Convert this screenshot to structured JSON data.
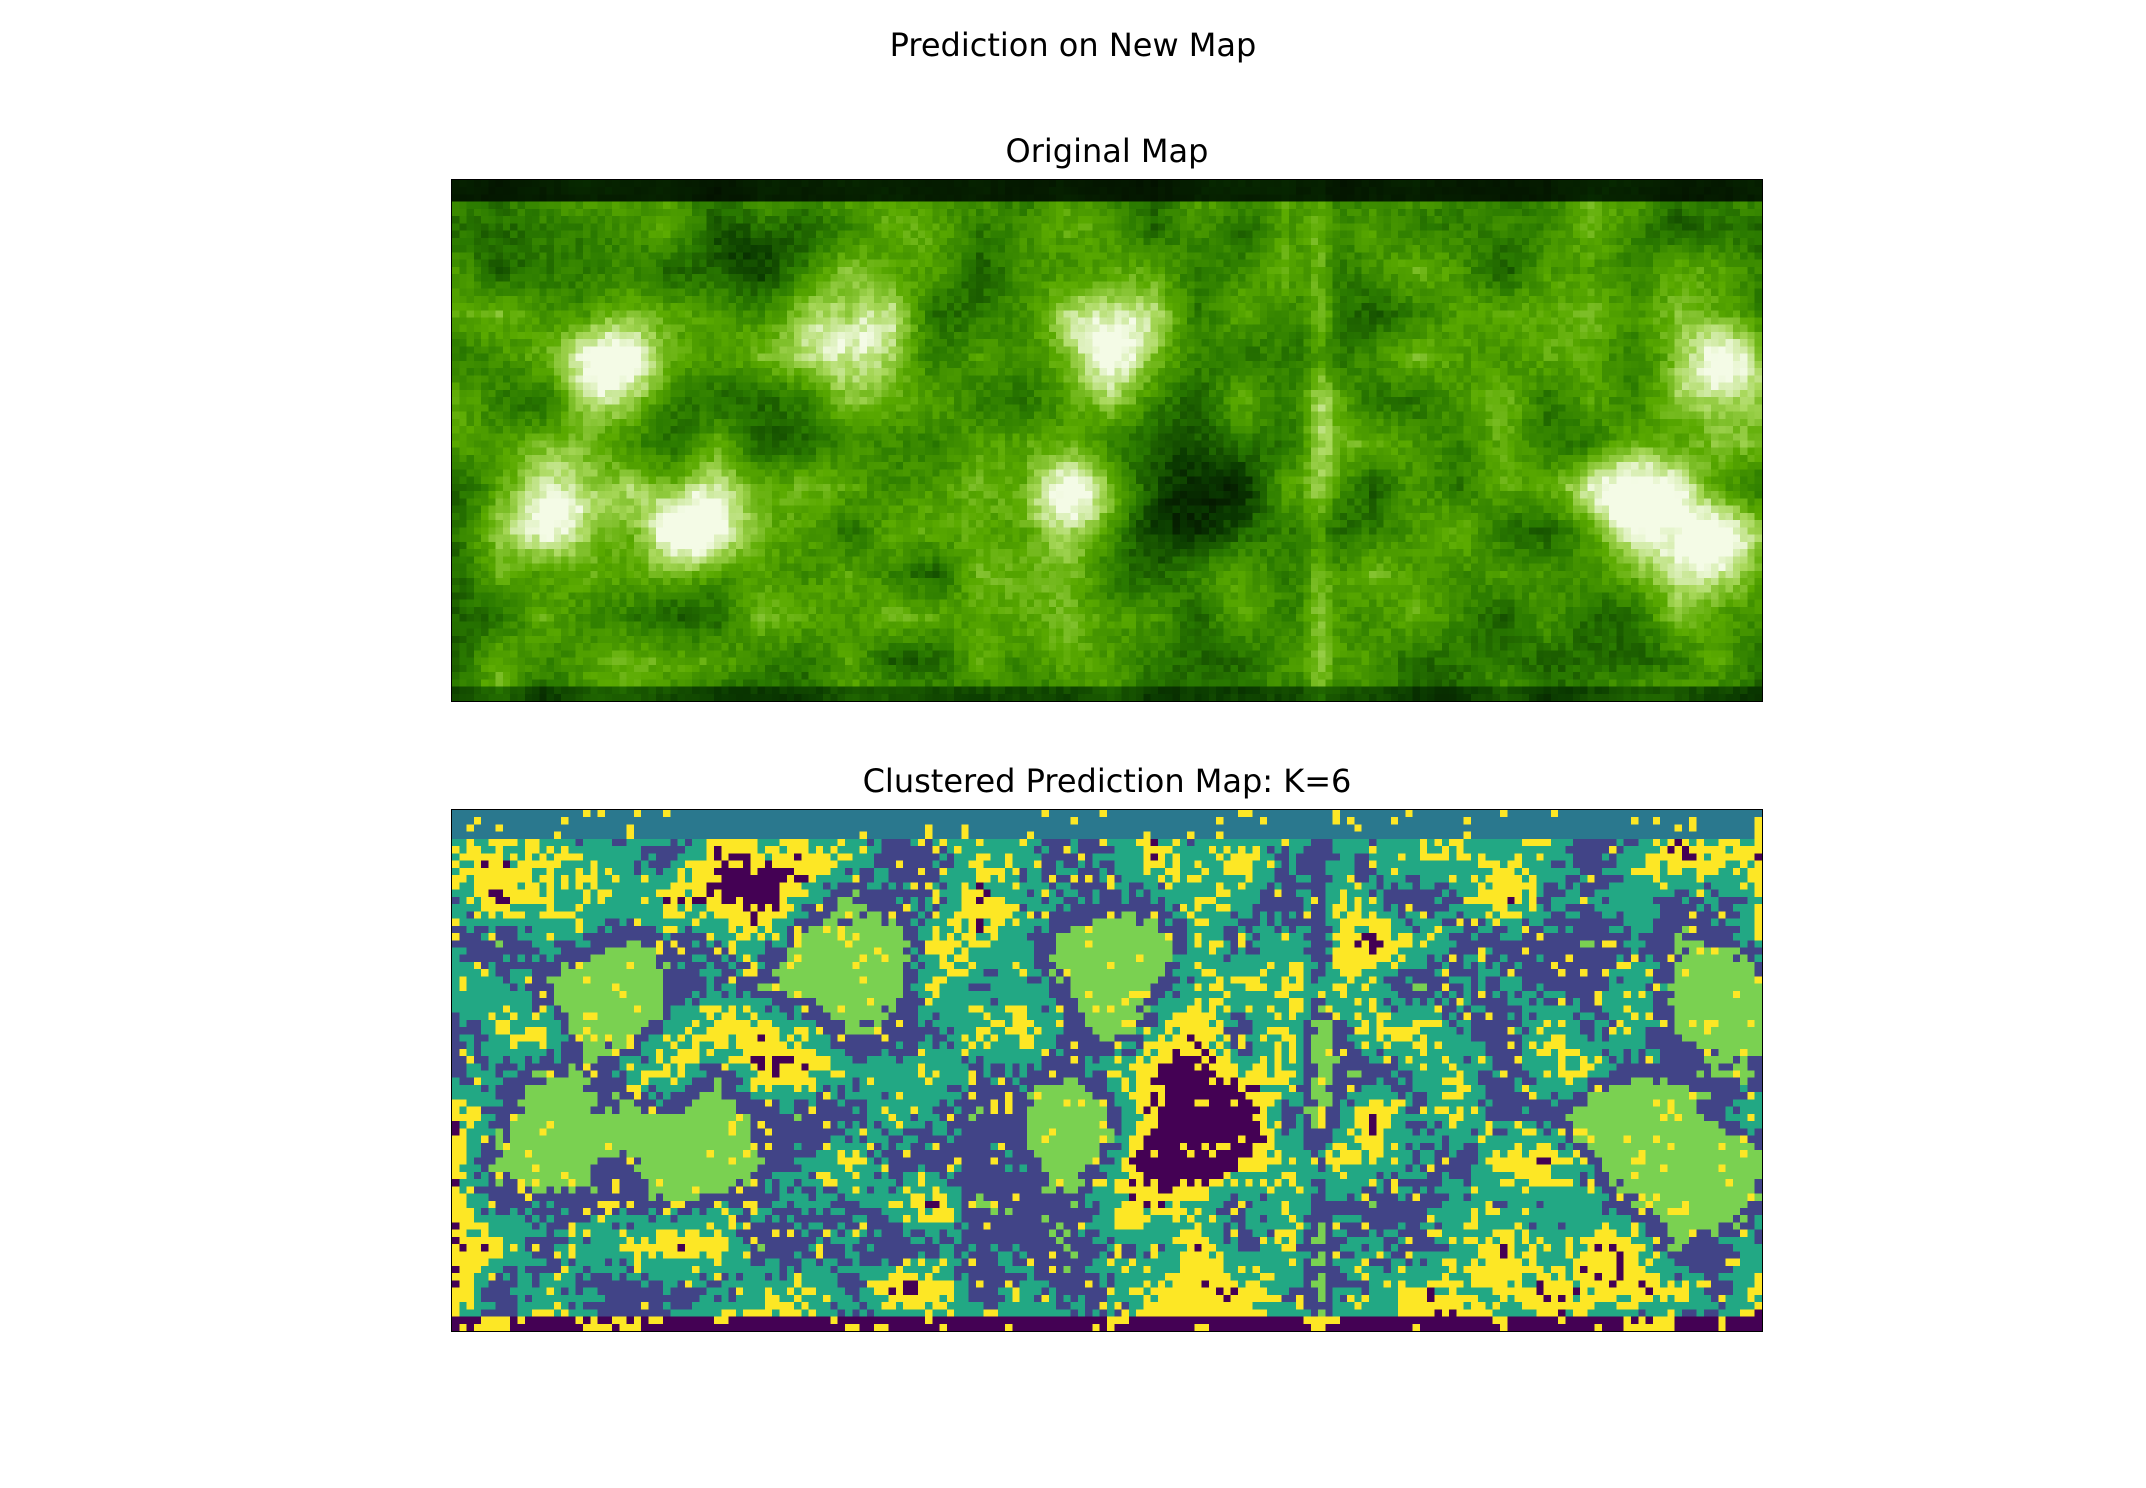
{
  "figure": {
    "suptitle": "Prediction on New Map"
  },
  "chart_data": [
    {
      "type": "heatmap",
      "title": "Original Map",
      "colormap": "black-green-white (AIA 171-like)",
      "colors": [
        "#000000",
        "#0a3a00",
        "#2a7a00",
        "#5aaa00",
        "#a8d85a",
        "#f4fbe6"
      ],
      "xlabel": "",
      "ylabel": "",
      "axes_ticks": "none"
    },
    {
      "type": "heatmap",
      "title": "Clustered Prediction Map: K=6",
      "colormap": "viridis",
      "n_clusters": 6,
      "cluster_colors": [
        "#440154",
        "#414487",
        "#2a788e",
        "#22a884",
        "#7ad151",
        "#fde725"
      ],
      "xlabel": "",
      "ylabel": "",
      "axes_ticks": "none"
    }
  ]
}
